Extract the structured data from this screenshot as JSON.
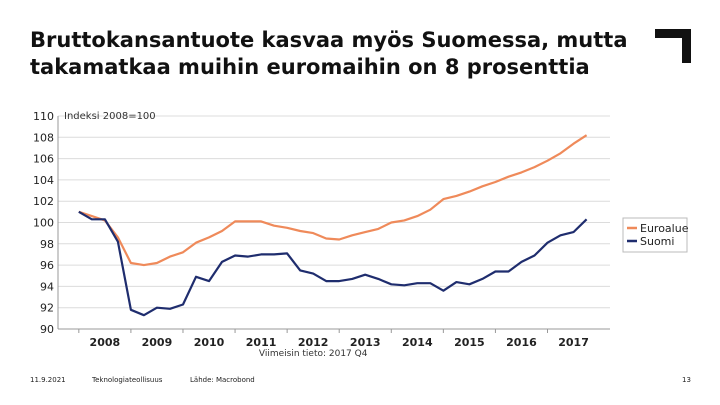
{
  "slide": {
    "title_line1": "Bruttokansantuote kasvaa myös Suomessa, mutta",
    "title_line2": "takamatkaa muihin euromaihin on 8 prosenttia"
  },
  "footer": {
    "date": "11.9.2021",
    "organization": "Teknologiateollisuus",
    "source": "Lähde: Macrobond",
    "page_number": "13"
  },
  "chart_data": {
    "type": "line",
    "annotation_top": "Indeksi 2008=100",
    "annotation_bottom": "Viimeisin tieto: 2017 Q4",
    "ylim": [
      90,
      110
    ],
    "yticks": [
      90,
      92,
      94,
      96,
      98,
      100,
      102,
      104,
      106,
      108,
      110
    ],
    "xlim": [
      2007.6,
      2018.2
    ],
    "xticks": [
      2008,
      2009,
      2010,
      2011,
      2012,
      2013,
      2014,
      2015,
      2016,
      2017
    ],
    "legend_position": "right",
    "colors": {
      "Euroalue": "#ef8a5a",
      "Suomi": "#1f2d6e"
    },
    "series": [
      {
        "name": "Euroalue",
        "x": [
          2008.0,
          2008.25,
          2008.5,
          2008.75,
          2009.0,
          2009.25,
          2009.5,
          2009.75,
          2010.0,
          2010.25,
          2010.5,
          2010.75,
          2011.0,
          2011.25,
          2011.5,
          2011.75,
          2012.0,
          2012.25,
          2012.5,
          2012.75,
          2013.0,
          2013.25,
          2013.5,
          2013.75,
          2014.0,
          2014.25,
          2014.5,
          2014.75,
          2015.0,
          2015.25,
          2015.5,
          2015.75,
          2016.0,
          2016.25,
          2016.5,
          2016.75,
          2017.0,
          2017.25,
          2017.5,
          2017.75
        ],
        "values": [
          101.0,
          100.6,
          100.2,
          98.6,
          96.2,
          96.0,
          96.2,
          96.8,
          97.2,
          98.1,
          98.6,
          99.2,
          100.1,
          100.1,
          100.1,
          99.7,
          99.5,
          99.2,
          99.0,
          98.5,
          98.4,
          98.8,
          99.1,
          99.4,
          100.0,
          100.2,
          100.6,
          101.2,
          102.2,
          102.5,
          102.9,
          103.4,
          103.8,
          104.3,
          104.7,
          105.2,
          105.8,
          106.5,
          107.4,
          108.2
        ]
      },
      {
        "name": "Suomi",
        "x": [
          2008.0,
          2008.25,
          2008.5,
          2008.75,
          2009.0,
          2009.25,
          2009.5,
          2009.75,
          2010.0,
          2010.25,
          2010.5,
          2010.75,
          2011.0,
          2011.25,
          2011.5,
          2011.75,
          2012.0,
          2012.25,
          2012.5,
          2012.75,
          2013.0,
          2013.25,
          2013.5,
          2013.75,
          2014.0,
          2014.25,
          2014.5,
          2014.75,
          2015.0,
          2015.25,
          2015.5,
          2015.75,
          2016.0,
          2016.25,
          2016.5,
          2016.75,
          2017.0,
          2017.25,
          2017.5,
          2017.75
        ],
        "values": [
          101.0,
          100.3,
          100.3,
          98.2,
          91.8,
          91.3,
          92.0,
          91.9,
          92.3,
          94.9,
          94.5,
          96.3,
          96.9,
          96.8,
          97.0,
          97.0,
          97.1,
          95.5,
          95.2,
          94.5,
          94.5,
          94.7,
          95.1,
          94.7,
          94.2,
          94.1,
          94.3,
          94.3,
          93.6,
          94.4,
          94.2,
          94.7,
          95.4,
          95.4,
          96.3,
          96.9,
          98.1,
          98.8,
          99.1,
          100.3
        ]
      }
    ]
  }
}
